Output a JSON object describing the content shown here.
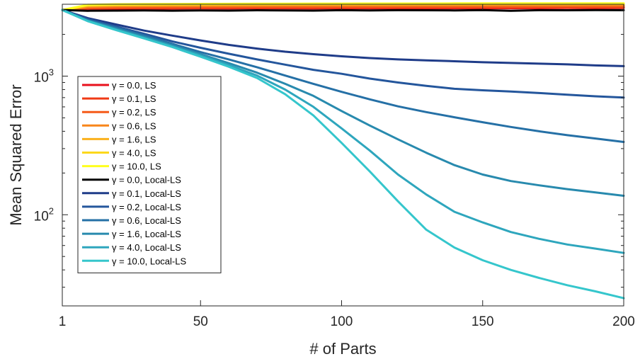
{
  "chart_data": {
    "type": "line",
    "title": "",
    "xlabel": "# of Parts",
    "ylabel": "Mean Squared Error",
    "xlim": [
      1,
      200
    ],
    "ylim": [
      22,
      3300
    ],
    "yscale": "log",
    "grid": false,
    "legend_position": "left",
    "x_ticks": [
      {
        "value": 1,
        "label": "1"
      },
      {
        "value": 50,
        "label": "50"
      },
      {
        "value": 100,
        "label": "100"
      },
      {
        "value": 150,
        "label": "150"
      },
      {
        "value": 200,
        "label": "200"
      }
    ],
    "y_ticks": [
      {
        "value": 100,
        "base": "10",
        "exp": "2"
      },
      {
        "value": 1000,
        "base": "10",
        "exp": "3"
      }
    ],
    "x": [
      1,
      10,
      20,
      30,
      40,
      50,
      60,
      70,
      80,
      90,
      100,
      110,
      120,
      130,
      140,
      150,
      160,
      170,
      180,
      190,
      200
    ],
    "series": [
      {
        "name": "γ = 0.0, LS",
        "color": "#e8101c",
        "values": [
          3000,
          3060,
          3070,
          3080,
          3075,
          3085,
          3080,
          3090,
          3085,
          3080,
          3090,
          3085,
          3090,
          3095,
          3090,
          3095,
          3090,
          3095,
          3100,
          3095,
          3100
        ]
      },
      {
        "name": "γ = 0.1, LS",
        "color": "#f03a16",
        "values": [
          3000,
          3080,
          3095,
          3100,
          3100,
          3105,
          3110,
          3110,
          3115,
          3110,
          3115,
          3120,
          3115,
          3120,
          3125,
          3120,
          3125,
          3130,
          3125,
          3130,
          3130
        ]
      },
      {
        "name": "γ = 0.2, LS",
        "color": "#f55a18",
        "values": [
          3000,
          3110,
          3130,
          3140,
          3145,
          3150,
          3150,
          3155,
          3160,
          3160,
          3165,
          3165,
          3170,
          3170,
          3175,
          3175,
          3180,
          3180,
          3185,
          3185,
          3190
        ]
      },
      {
        "name": "γ = 0.6, LS",
        "color": "#f8861a",
        "values": [
          3000,
          3160,
          3190,
          3200,
          3210,
          3215,
          3220,
          3225,
          3230,
          3230,
          3235,
          3240,
          3240,
          3245,
          3245,
          3250,
          3250,
          3255,
          3255,
          3260,
          3260
        ]
      },
      {
        "name": "γ = 1.6, LS",
        "color": "#fbb11c",
        "values": [
          3000,
          3210,
          3240,
          3255,
          3265,
          3270,
          3275,
          3280,
          3285,
          3285,
          3290,
          3290,
          3295,
          3295,
          3300,
          3300,
          3305,
          3305,
          3310,
          3310,
          3310
        ]
      },
      {
        "name": "γ = 4.0, LS",
        "color": "#fcd81c",
        "values": [
          3000,
          3250,
          3280,
          3290,
          3300,
          3305,
          3310,
          3315,
          3315,
          3320,
          3320,
          3325,
          3325,
          3330,
          3330,
          3330,
          3335,
          3335,
          3335,
          3340,
          3340
        ]
      },
      {
        "name": "γ = 10.0, LS",
        "color": "#ffff1e",
        "values": [
          3000,
          3270,
          3300,
          3310,
          3315,
          3320,
          3325,
          3330,
          3330,
          3335,
          3335,
          3340,
          3340,
          3340,
          3345,
          3345,
          3345,
          3350,
          3350,
          3350,
          3350
        ]
      },
      {
        "name": "γ = 0.0, Local-LS",
        "color": "#000000",
        "values": [
          3000,
          2960,
          2970,
          2975,
          2965,
          2980,
          2970,
          2985,
          2980,
          2970,
          2990,
          2975,
          2990,
          2985,
          2980,
          2995,
          2960,
          2990,
          2985,
          2995,
          2990
        ]
      },
      {
        "name": "γ = 0.1, Local-LS",
        "color": "#1f3c89",
        "values": [
          3000,
          2620,
          2360,
          2130,
          1960,
          1810,
          1680,
          1580,
          1500,
          1440,
          1390,
          1350,
          1320,
          1300,
          1280,
          1260,
          1245,
          1230,
          1215,
          1195,
          1180
        ]
      },
      {
        "name": "γ = 0.2, Local-LS",
        "color": "#24569c",
        "values": [
          3000,
          2580,
          2280,
          2020,
          1780,
          1600,
          1450,
          1320,
          1210,
          1110,
          1040,
          960,
          900,
          850,
          810,
          790,
          775,
          755,
          735,
          715,
          700
        ]
      },
      {
        "name": "γ = 0.6, Local-LS",
        "color": "#2570a6",
        "values": [
          3000,
          2540,
          2240,
          1970,
          1710,
          1490,
          1320,
          1160,
          1010,
          880,
          770,
          680,
          605,
          550,
          505,
          465,
          430,
          400,
          375,
          355,
          335
        ]
      },
      {
        "name": "γ = 1.6, Local-LS",
        "color": "#288aae",
        "values": [
          3000,
          2520,
          2200,
          1920,
          1670,
          1440,
          1240,
          1060,
          880,
          720,
          560,
          440,
          350,
          280,
          228,
          195,
          175,
          163,
          153,
          145,
          137
        ]
      },
      {
        "name": "γ = 4.0, Local-LS",
        "color": "#2ea6bd",
        "values": [
          3000,
          2500,
          2170,
          1890,
          1640,
          1410,
          1200,
          1010,
          800,
          600,
          420,
          290,
          195,
          140,
          105,
          88,
          75,
          67,
          61,
          57,
          53
        ]
      },
      {
        "name": "γ = 10.0, Local-LS",
        "color": "#35c6cc",
        "values": [
          3000,
          2490,
          2150,
          1870,
          1620,
          1380,
          1170,
          970,
          740,
          520,
          330,
          205,
          125,
          78,
          58,
          47,
          40,
          35,
          31,
          28,
          25
        ]
      }
    ]
  }
}
